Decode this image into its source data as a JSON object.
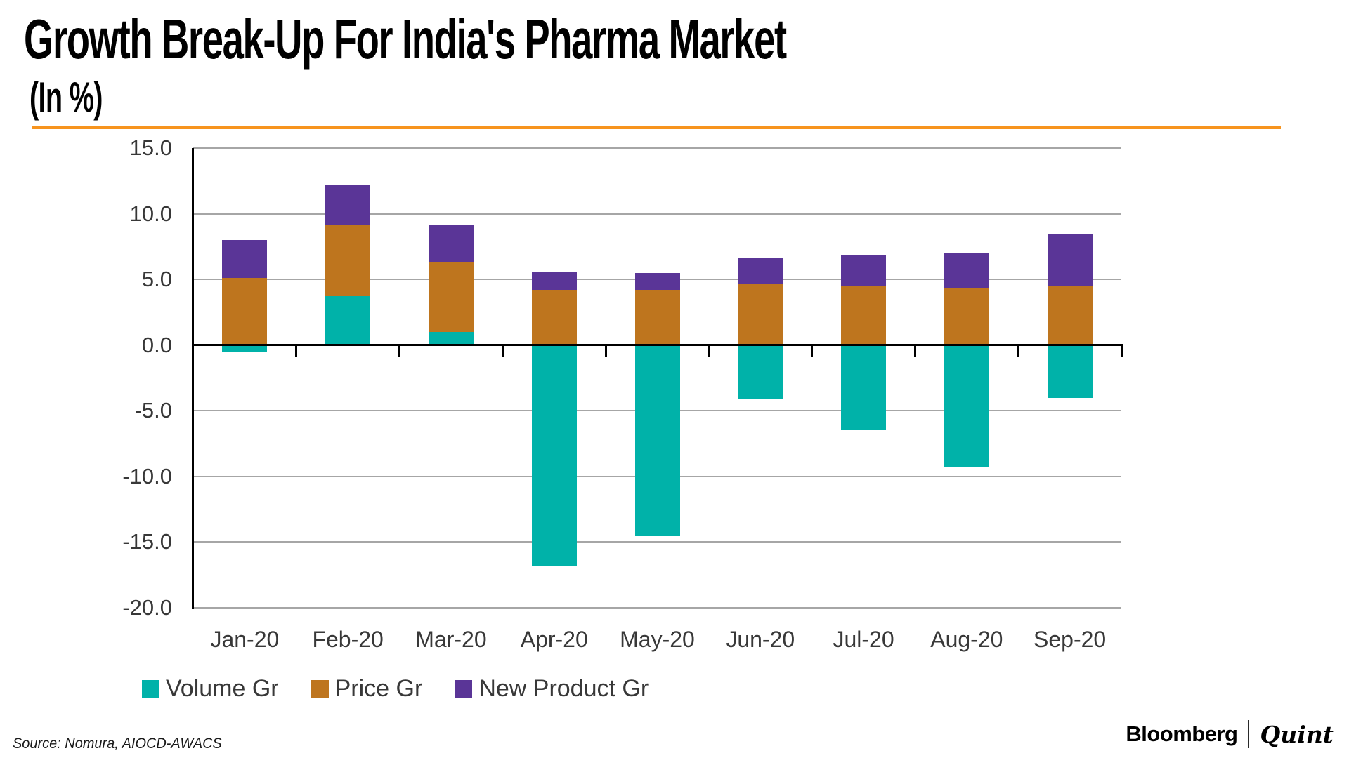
{
  "header": {
    "title": "Growth Break-Up For India's Pharma Market",
    "subtitle": "(In %)",
    "rule_color": "#F7941E"
  },
  "footer": {
    "source": "Source: Nomura, AIOCD-AWACS",
    "brand": {
      "bloomberg": "Bloomberg",
      "quint": "Quint"
    }
  },
  "chart_data": {
    "type": "bar",
    "stacked": true,
    "title": "Growth Break-Up For India's Pharma Market (In %)",
    "categories": [
      "Jan-20",
      "Feb-20",
      "Mar-20",
      "Apr-20",
      "May-20",
      "Jun-20",
      "Jul-20",
      "Aug-20",
      "Sep-20"
    ],
    "series": [
      {
        "name": "Volume Gr",
        "color": "#00B2A9",
        "values": [
          -0.5,
          3.7,
          1.0,
          -16.8,
          -14.5,
          -4.1,
          -6.5,
          -9.3,
          -4.0
        ]
      },
      {
        "name": "Price Gr",
        "color": "#BE751E",
        "values": [
          5.1,
          5.4,
          5.3,
          4.2,
          4.2,
          4.7,
          4.5,
          4.3,
          4.5
        ]
      },
      {
        "name": "New Product Gr",
        "color": "#5A3597",
        "values": [
          2.9,
          3.1,
          2.9,
          1.4,
          1.3,
          1.9,
          2.3,
          2.7,
          4.0
        ]
      }
    ],
    "ylim": [
      -20,
      15
    ],
    "yticks": [
      15,
      10,
      5,
      0,
      -5,
      -10,
      -15,
      -20
    ],
    "ytick_format": "one_decimal",
    "grid": true,
    "gridline_color": "#A6A6A6",
    "axis_color": "#000000",
    "label_color": "#383838",
    "legend_position": "bottom-left"
  }
}
